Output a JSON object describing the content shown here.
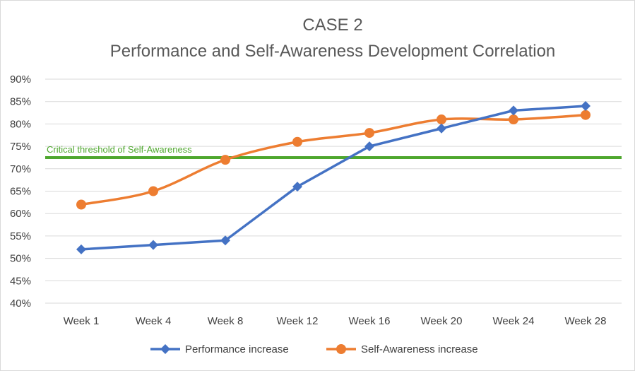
{
  "chart_data": {
    "type": "line",
    "title": "CASE 2",
    "subtitle": "Performance and Self-Awareness Development Correlation",
    "xlabel": "",
    "ylabel": "",
    "categories": [
      "Week 1",
      "Week 4",
      "Week 8",
      "Week 12",
      "Week 16",
      "Week 20",
      "Week 24",
      "Week 28"
    ],
    "ylim": [
      40,
      90
    ],
    "y_ticks": [
      "40%",
      "45%",
      "50%",
      "55%",
      "60%",
      "65%",
      "70%",
      "75%",
      "80%",
      "85%",
      "90%"
    ],
    "grid": true,
    "legend_position": "bottom",
    "series": [
      {
        "name": "Performance increase",
        "values": [
          52,
          53,
          54,
          66,
          75,
          79,
          83,
          84
        ],
        "color": "#4472C4",
        "marker": "diamond",
        "smooth": false
      },
      {
        "name": "Self-Awareness increase",
        "values": [
          62,
          65,
          72,
          76,
          78,
          81,
          81,
          82
        ],
        "color": "#ED7D31",
        "marker": "circle",
        "smooth": true
      }
    ],
    "reference_line": {
      "label": "Critical threshold of Self-Awareness",
      "value": 72.5,
      "color": "#4EA72E"
    }
  }
}
